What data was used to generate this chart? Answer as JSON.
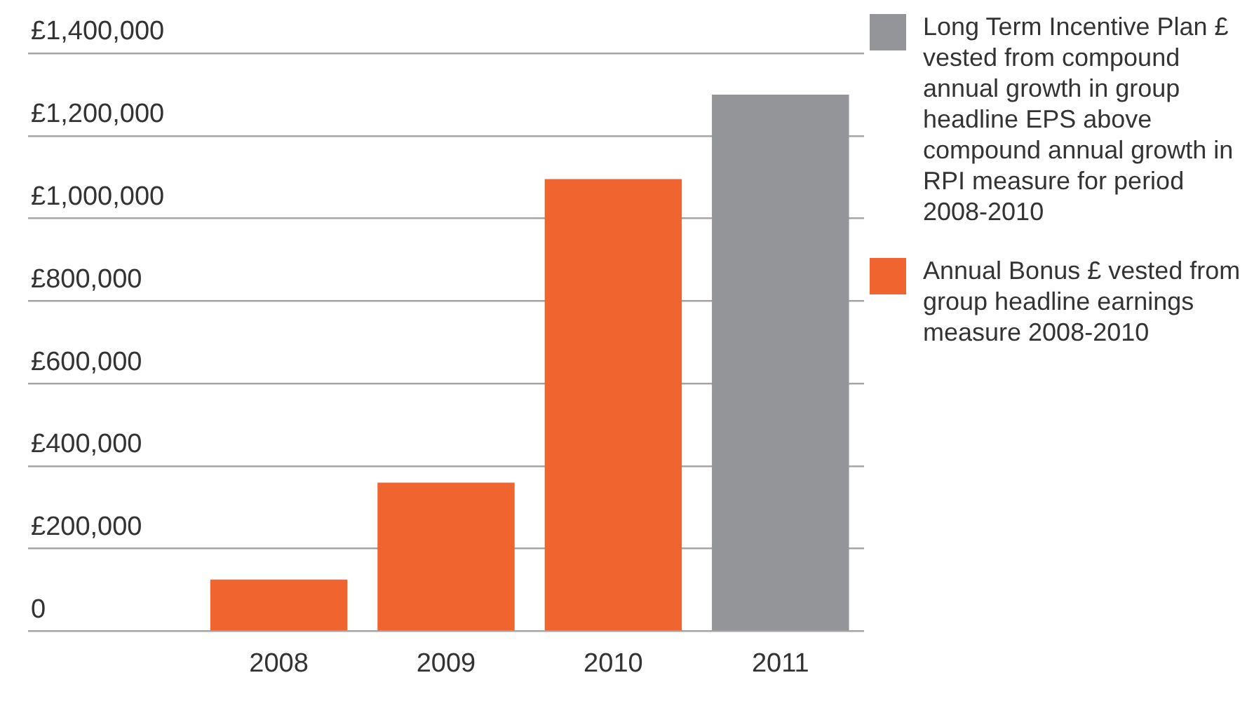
{
  "chart_data": {
    "type": "bar",
    "categories": [
      null,
      "2008",
      "2009",
      "2010",
      "2011"
    ],
    "series": [
      {
        "name": "Long Term Incentive Plan £ vested from compound annual growth in group headline EPS above compound annual growth in RPI measure for period 2008-2010",
        "color": "#939598",
        "values": [
          null,
          null,
          null,
          null,
          1300000
        ]
      },
      {
        "name": "Annual Bonus £ vested from group headline earnings measure 2008-2010",
        "color": "#f06430",
        "values": [
          null,
          125000,
          360000,
          1095000,
          null
        ]
      }
    ],
    "stacked": true,
    "ylim": [
      0,
      1400000
    ],
    "yticks": [
      0,
      {
        "value": 200000,
        "label": "£200,000"
      },
      {
        "value": 400000,
        "label": "£400,000"
      },
      {
        "value": 600000,
        "label": "£600,000"
      },
      {
        "value": 800000,
        "label": "£800,000"
      },
      {
        "value": 1000000,
        "label": "£1,000,000"
      },
      {
        "value": 1200000,
        "label": "£1,200,000"
      },
      {
        "value": 1400000,
        "label": "£1,400,000"
      }
    ],
    "grid": "y",
    "legend": "right"
  }
}
